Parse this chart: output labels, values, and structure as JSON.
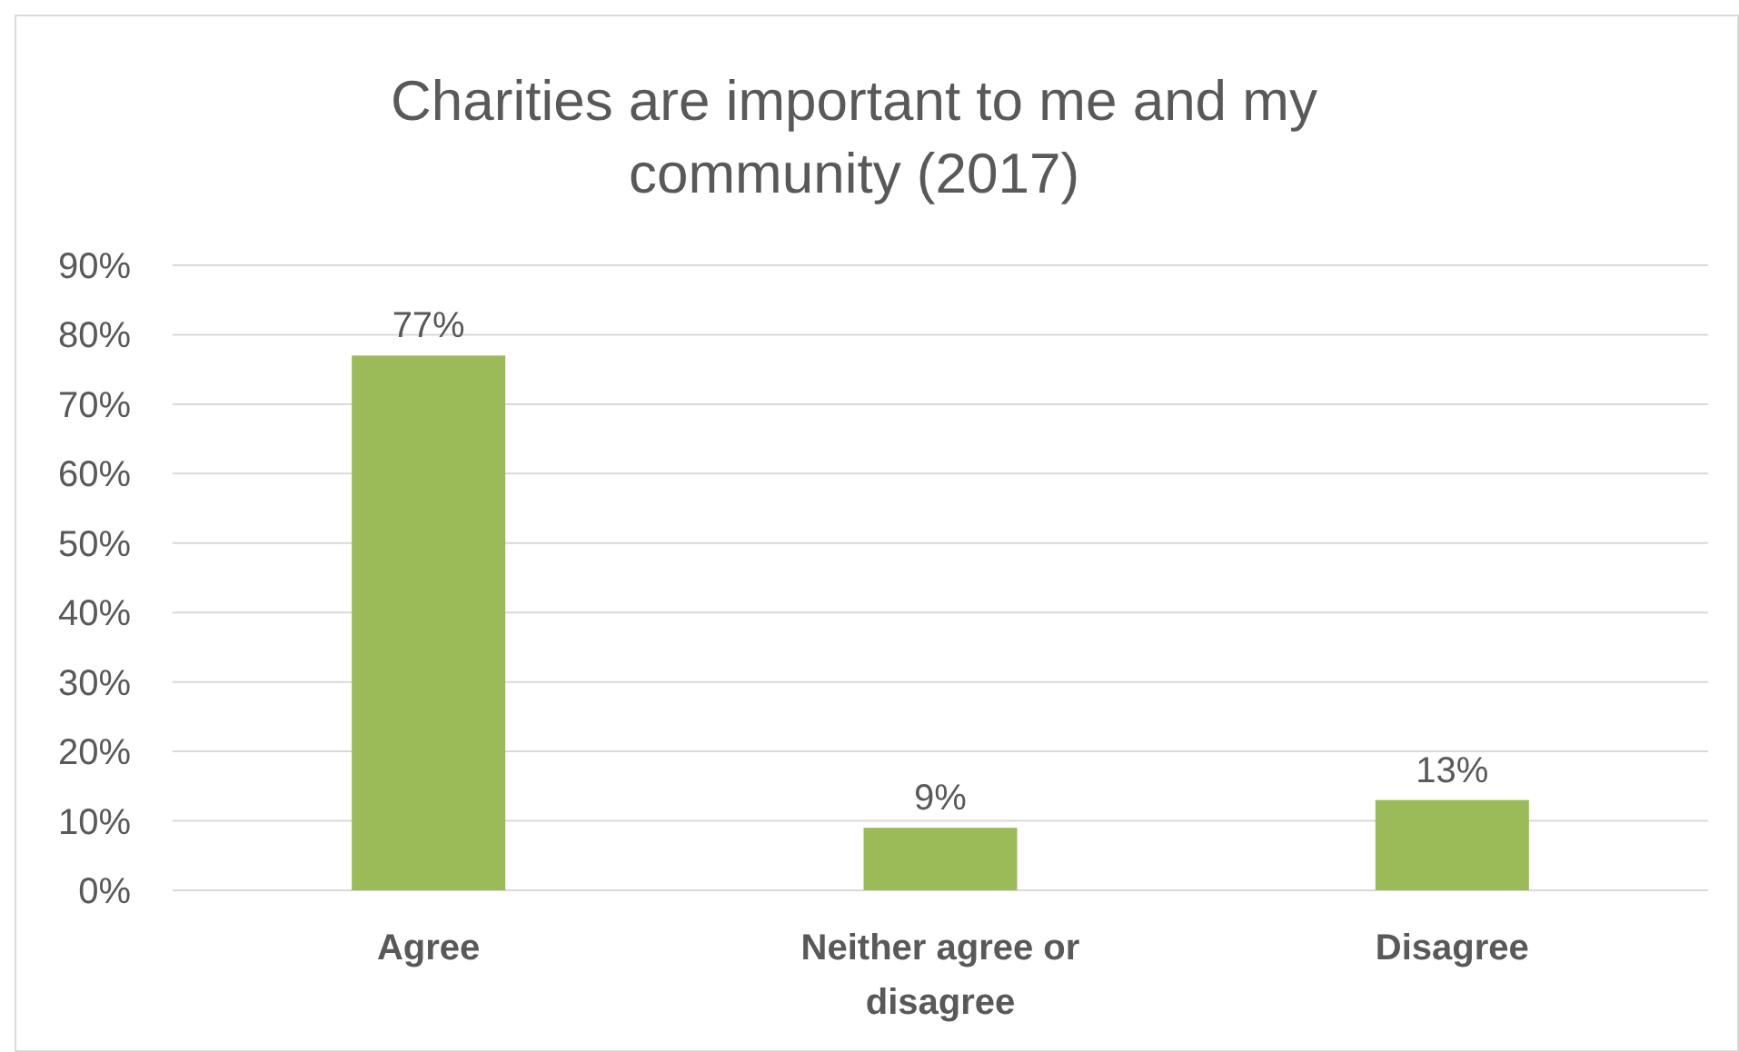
{
  "chart_data": {
    "type": "bar",
    "title": "Charities are important to me and my community (2017)",
    "categories": [
      "Agree",
      "Neither agree or disagree",
      "Disagree"
    ],
    "values": [
      77,
      9,
      13
    ],
    "color": "#9bbb59",
    "value_labels": [
      "77%",
      "9%",
      "13%"
    ],
    "ylim": [
      0,
      90
    ],
    "yticks": [
      {
        "value": 0,
        "label": "0%"
      },
      {
        "value": 10,
        "label": "10%"
      },
      {
        "value": 20,
        "label": "20%"
      },
      {
        "value": 30,
        "label": "30%"
      },
      {
        "value": 40,
        "label": "40%"
      },
      {
        "value": 50,
        "label": "50%"
      },
      {
        "value": 60,
        "label": "60%"
      },
      {
        "value": 70,
        "label": "70%"
      },
      {
        "value": 80,
        "label": "80%"
      },
      {
        "value": 90,
        "label": "90%"
      }
    ],
    "grid": "y"
  }
}
